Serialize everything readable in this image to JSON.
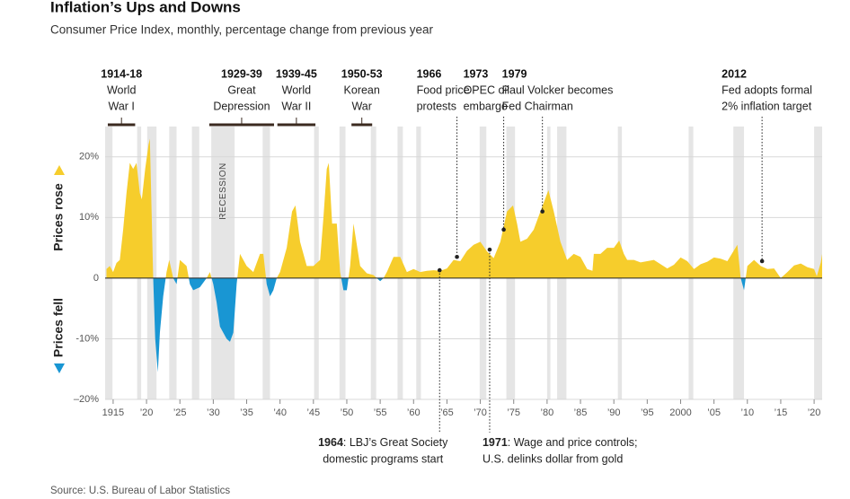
{
  "chart_data": {
    "type": "area",
    "title": "Inflation’s Ups and Downs",
    "subtitle": "Consumer Price Index, monthly, percentage change from previous year",
    "source": "Source: U.S. Bureau of Labor Statistics",
    "label_above": "Prices rose",
    "label_below": "Prices fell",
    "recession_label": "RECESSION",
    "color_above": "#f6cd2c",
    "color_below": "#1996d3",
    "recession_color": "#e5e5e5",
    "grid": true,
    "xlim": [
      1913.8,
      2021.2
    ],
    "ylim": [
      -20,
      25
    ],
    "xticks": [
      1915,
      {
        "value": 1920,
        "label": "’20"
      },
      {
        "value": 1925,
        "label": "’25"
      },
      {
        "value": 1930,
        "label": "’30"
      },
      {
        "value": 1935,
        "label": "’35"
      },
      {
        "value": 1940,
        "label": "’40"
      },
      {
        "value": 1945,
        "label": "’45"
      },
      {
        "value": 1950,
        "label": "’50"
      },
      {
        "value": 1955,
        "label": "’55"
      },
      {
        "value": 1960,
        "label": "’60"
      },
      {
        "value": 1965,
        "label": "’65"
      },
      {
        "value": 1970,
        "label": "’70"
      },
      {
        "value": 1975,
        "label": "’75"
      },
      {
        "value": 1980,
        "label": "’80"
      },
      {
        "value": 1985,
        "label": "’85"
      },
      {
        "value": 1990,
        "label": "’90"
      },
      {
        "value": 1995,
        "label": "’95"
      },
      2000,
      {
        "value": 2005,
        "label": "’05"
      },
      {
        "value": 2010,
        "label": "’10"
      },
      {
        "value": 2015,
        "label": "’15"
      },
      {
        "value": 2020,
        "label": "’20"
      }
    ],
    "yticks": [
      {
        "value": 20,
        "label": "20%"
      },
      {
        "value": 10,
        "label": "10%"
      },
      0,
      {
        "value": -10,
        "label": "-10%"
      },
      {
        "value": -20,
        "label": "–20%"
      }
    ],
    "recessions": [
      [
        1913.8,
        1914.9
      ],
      [
        1918.6,
        1919.2
      ],
      [
        1920.1,
        1921.5
      ],
      [
        1923.4,
        1924.5
      ],
      [
        1926.8,
        1927.9
      ],
      [
        1929.7,
        1933.2
      ],
      [
        1937.4,
        1938.5
      ],
      [
        1945.1,
        1945.8
      ],
      [
        1948.9,
        1949.8
      ],
      [
        1953.6,
        1954.4
      ],
      [
        1957.6,
        1958.4
      ],
      [
        1960.4,
        1961.1
      ],
      [
        1969.9,
        1970.9
      ],
      [
        1973.9,
        1975.2
      ],
      [
        1980.0,
        1980.5
      ],
      [
        1981.5,
        1982.9
      ],
      [
        1990.6,
        1991.2
      ],
      [
        2001.2,
        2001.9
      ],
      [
        2007.9,
        2009.5
      ],
      [
        2020.0,
        2021.2
      ]
    ],
    "x": [
      1914,
      1914.5,
      1915,
      1915.5,
      1916,
      1916.5,
      1917,
      1917.5,
      1918,
      1918.5,
      1919,
      1919.3,
      1919.8,
      1920.3,
      1920.5,
      1921,
      1921.3,
      1921.7,
      1922,
      1922.5,
      1923,
      1923.4,
      1924,
      1924.5,
      1925,
      1926,
      1926.5,
      1927,
      1928,
      1929,
      1929.5,
      1930,
      1930.5,
      1931,
      1931.5,
      1932,
      1932.5,
      1933,
      1933.5,
      1934,
      1935,
      1936,
      1937,
      1937.5,
      1938,
      1938.5,
      1939,
      1939.5,
      1940,
      1941,
      1941.8,
      1942.3,
      1943,
      1944,
      1945,
      1946,
      1946.5,
      1947,
      1947.3,
      1947.8,
      1948.5,
      1949,
      1949.5,
      1950,
      1950.5,
      1951,
      1952,
      1953,
      1954,
      1955,
      1955.5,
      1956,
      1957,
      1958,
      1959,
      1960,
      1961,
      1962,
      1963,
      1964,
      1965,
      1966,
      1967,
      1968,
      1969,
      1970,
      1971,
      1972,
      1973,
      1974,
      1974.9,
      1975.5,
      1976,
      1977,
      1978,
      1979,
      1980.2,
      1981,
      1982,
      1983,
      1984,
      1985,
      1986,
      1986.8,
      1987,
      1988,
      1989,
      1990,
      1990.8,
      1991.5,
      1992,
      1993,
      1994,
      1995,
      1996,
      1997,
      1998,
      1999,
      2000,
      2001,
      2002,
      2003,
      2004,
      2005,
      2006,
      2007,
      2008.5,
      2009,
      2009.5,
      2010,
      2011,
      2012,
      2013,
      2014,
      2015,
      2016,
      2017,
      2018,
      2019,
      2020,
      2020.4,
      2021,
      2021.2
    ],
    "values": [
      1.5,
      2,
      1,
      2.5,
      3,
      8,
      14,
      19,
      18,
      19,
      14,
      13,
      18,
      22,
      23,
      0,
      -10,
      -15.5,
      -9,
      -3,
      1,
      3,
      0,
      -1,
      3,
      2,
      -1,
      -2,
      -1.5,
      0,
      1,
      -1,
      -4,
      -8,
      -9,
      -10,
      -10.5,
      -9,
      -1,
      4,
      2,
      1,
      4,
      4,
      -1,
      -3,
      -2,
      0,
      1,
      5,
      11,
      12,
      6,
      2,
      2,
      3,
      10,
      18,
      19,
      9,
      9,
      1,
      -2,
      -2,
      2,
      9,
      2,
      0.8,
      0.5,
      -0.5,
      0,
      1,
      3.5,
      3.5,
      1,
      1.5,
      1,
      1.2,
      1.3,
      1.2,
      1.6,
      3,
      2.8,
      4.5,
      5.5,
      6,
      4.4,
      3.3,
      6,
      11,
      12,
      9,
      6,
      6.5,
      8,
      11,
      14.5,
      11,
      6,
      3,
      4,
      3.5,
      1.5,
      1.2,
      4,
      4,
      5,
      5,
      6.2,
      4,
      3,
      3,
      2.6,
      2.8,
      3,
      2.3,
      1.6,
      2.2,
      3.4,
      2.8,
      1.5,
      2.3,
      2.7,
      3.4,
      3.2,
      2.8,
      5.5,
      0,
      -2,
      2,
      3,
      2,
      1.5,
      1.6,
      0,
      1,
      2.1,
      2.4,
      1.8,
      1.5,
      0.3,
      2.6,
      4
    ],
    "periods": [
      {
        "years": "1914-18",
        "lines": [
          "World",
          "War I"
        ],
        "start": 1914.2,
        "end": 1918.3
      },
      {
        "years": "1929-39",
        "lines": [
          "Great",
          "Depression"
        ],
        "start": 1929.4,
        "end": 1939.1
      },
      {
        "years": "1939-45",
        "lines": [
          "World",
          "War II"
        ],
        "start": 1939.6,
        "end": 1945.3
      },
      {
        "years": "1950-53",
        "lines": [
          "Korean",
          "War"
        ],
        "start": 1950.7,
        "end": 1953.8
      }
    ],
    "events_top": [
      {
        "year": "1966",
        "lines": [
          "Food price",
          "protests"
        ],
        "x": 1966.5,
        "y": 3.5
      },
      {
        "year": "1973",
        "lines": [
          "OPEC oil",
          "embargo"
        ],
        "x": 1973.5,
        "y": 8
      },
      {
        "year": "1979",
        "lines": [
          "Paul Volcker becomes",
          "Fed Chairman"
        ],
        "x": 1979.3,
        "y": 11
      },
      {
        "year": "2012",
        "lines": [
          "Fed adopts formal",
          "2% inflation target"
        ],
        "x": 2012.2,
        "y": 2.8
      }
    ],
    "events_bottom": [
      {
        "year": "1964",
        "lines": [
          ": LBJ’s Great Society",
          "domestic programs start"
        ],
        "x": 1963.9,
        "y": 1.3
      },
      {
        "year": "1971",
        "lines": [
          ": Wage and price controls;",
          "U.S. delinks dollar from gold"
        ],
        "x": 1971.4,
        "y": 4.7
      }
    ]
  }
}
